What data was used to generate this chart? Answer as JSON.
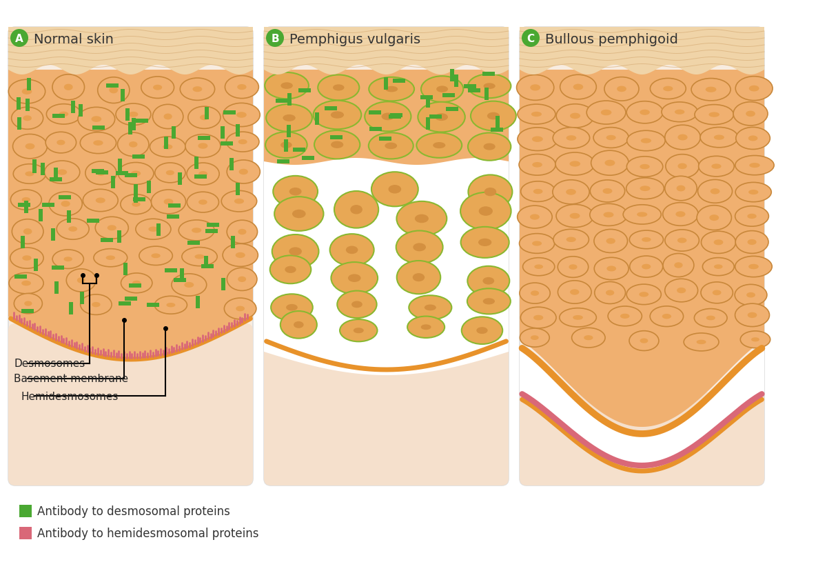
{
  "title_A": "Normal skin",
  "title_B": "Pemphigus vulgaris",
  "title_C": "Bullous pemphigoid",
  "bg_color": "#ffffff",
  "panel_bg": "#f8ece0",
  "dermis_color": "#f5e0cc",
  "epi_color": "#f0b070",
  "corneum_color": "#f0d4a8",
  "corneum_line_color": "#d4a870",
  "cell_fill": "#f0b070",
  "cell_border": "#c8873a",
  "cell_nucleus": "#e8a050",
  "green_desmosome": "#4aa832",
  "pink_hemi": "#d96878",
  "basement_color": "#c87832",
  "blister_color": "#ffffff",
  "bm_orange": "#e8922a",
  "annotation_color": "#222222",
  "legend_green": "#4aa832",
  "legend_pink": "#d96878",
  "legend_text1": "Antibody to desmosomal proteins",
  "legend_text2": "Antibody to hemidesmosomal proteins",
  "annot_desmosomes": "Desmosomes",
  "annot_basement": "Basement membrane",
  "annot_hemi": "Hemidesmosomes",
  "circle_color": "#4aa832",
  "panel_border": "#dddddd",
  "title_fontsize": 14,
  "label_fontsize": 11,
  "annot_fontsize": 11
}
